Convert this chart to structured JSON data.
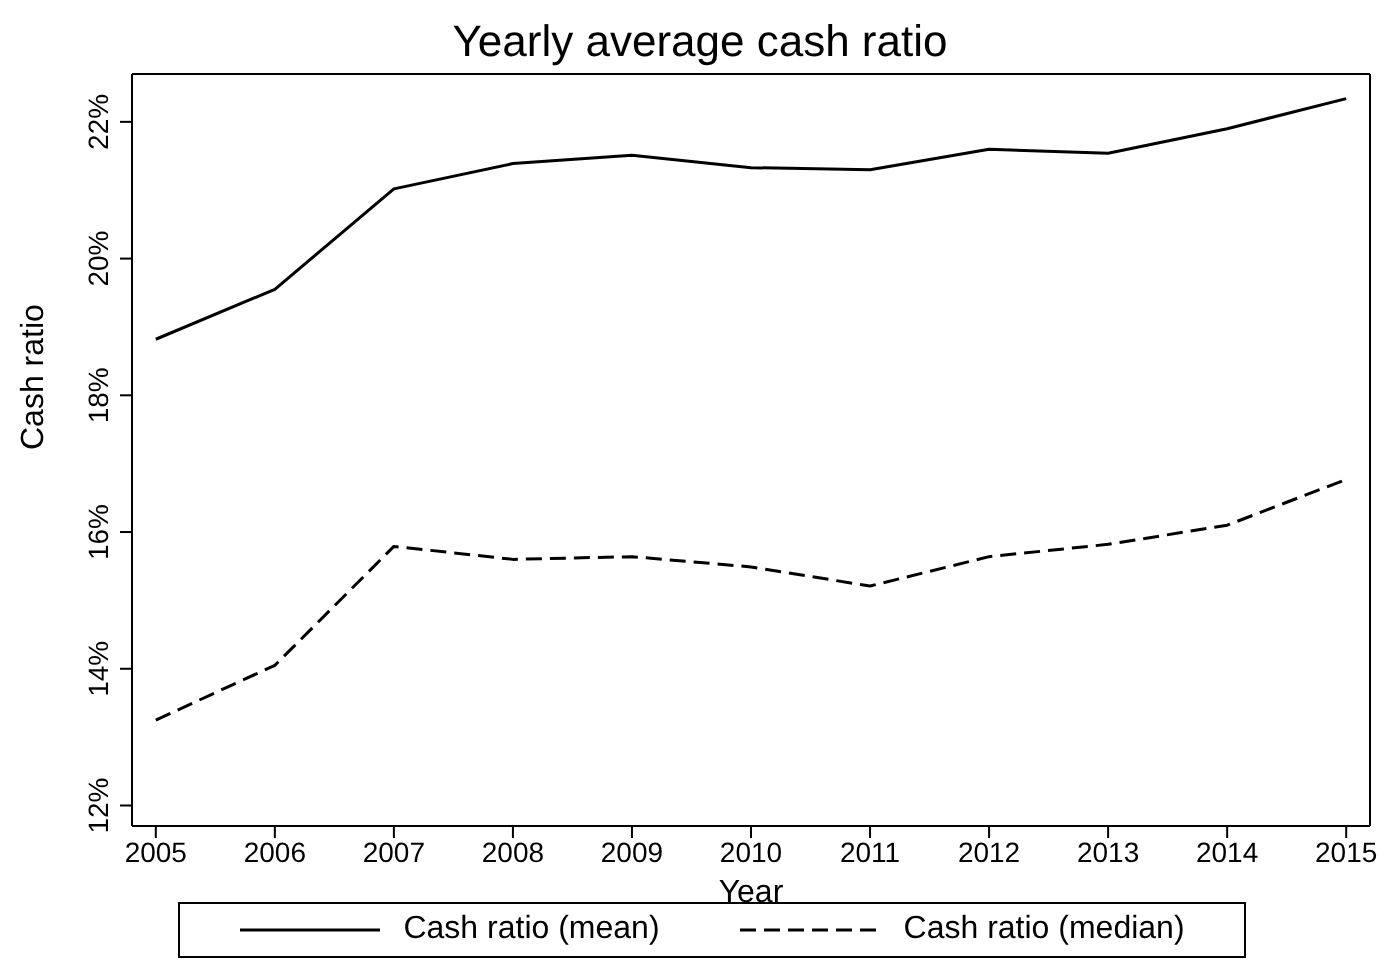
{
  "chart_data": {
    "type": "line",
    "title": "Yearly average cash ratio",
    "xlabel": "Year",
    "ylabel": "Cash ratio",
    "x": [
      2005,
      2006,
      2007,
      2008,
      2009,
      2010,
      2011,
      2012,
      2013,
      2014,
      2015
    ],
    "series": [
      {
        "name": "Cash ratio (mean)",
        "color": "#000000",
        "line_style": "solid",
        "values": [
          18.82,
          19.55,
          21.02,
          21.39,
          21.51,
          21.33,
          21.3,
          21.6,
          21.54,
          21.9,
          22.34
        ]
      },
      {
        "name": "Cash ratio (median)",
        "color": "#000000",
        "line_style": "dashed",
        "values": [
          13.25,
          14.05,
          15.79,
          15.6,
          15.64,
          15.49,
          15.21,
          15.64,
          15.82,
          16.1,
          16.77
        ]
      }
    ],
    "xlim": [
      2004.8,
      2015.2
    ],
    "xticks": [
      2005,
      2006,
      2007,
      2008,
      2009,
      2010,
      2011,
      2012,
      2013,
      2014,
      2015
    ],
    "ylim": [
      11.7,
      22.7
    ],
    "yticks": [
      {
        "value": 12,
        "label": "12%"
      },
      {
        "value": 14,
        "label": "14%"
      },
      {
        "value": 16,
        "label": "16%"
      },
      {
        "value": 18,
        "label": "18%"
      },
      {
        "value": 20,
        "label": "20%"
      },
      {
        "value": 22,
        "label": "22%"
      }
    ],
    "grid": false,
    "legend": "bottom",
    "marker": "none"
  }
}
